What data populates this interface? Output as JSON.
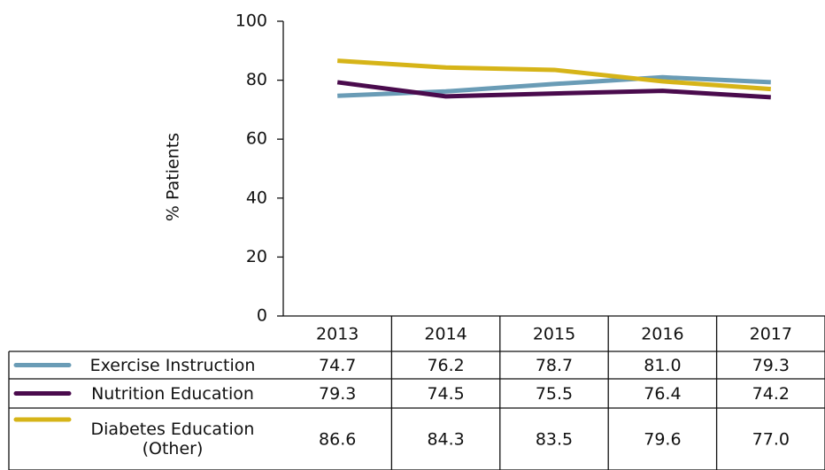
{
  "chart_data": {
    "type": "line",
    "ylabel": "% Patients",
    "categories": [
      "2013",
      "2014",
      "2015",
      "2016",
      "2017"
    ],
    "ylim": [
      0,
      100
    ],
    "yticks": [
      0,
      20,
      40,
      60,
      80,
      100
    ],
    "series": [
      {
        "name": "Exercise Instruction",
        "color": "#6a9cb6",
        "values": [
          74.7,
          76.2,
          78.7,
          81.0,
          79.3
        ],
        "value_labels": [
          "74.7",
          "76.2",
          "78.7",
          "81.0",
          "79.3"
        ]
      },
      {
        "name": "Nutrition Education",
        "color": "#4a0b4d",
        "values": [
          79.3,
          74.5,
          75.5,
          76.4,
          74.2
        ],
        "value_labels": [
          "79.3",
          "74.5",
          "75.5",
          "76.4",
          "74.2"
        ]
      },
      {
        "name": "Diabetes Education (Other)",
        "color": "#d6b418",
        "values": [
          86.6,
          84.3,
          83.5,
          79.6,
          77.0
        ],
        "value_labels": [
          "86.6",
          "84.3",
          "83.5",
          "79.6",
          "77.0"
        ]
      }
    ]
  }
}
